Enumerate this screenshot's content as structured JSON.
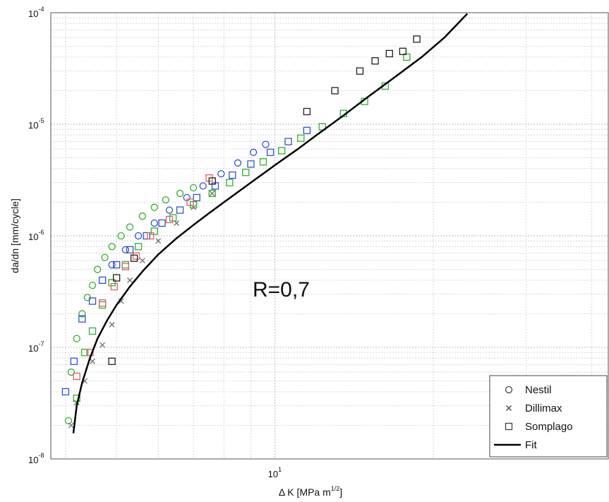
{
  "chart_data": {
    "type": "scatter",
    "title": "",
    "xlabel_prefix": "Δ K [MPa m",
    "xlabel_exp": "1/2",
    "xlabel_suffix": "]",
    "ylabel": "da/dn [mm/cycle]",
    "x_scale": "log",
    "y_scale": "log",
    "xlim": [
      3.75,
      43
    ],
    "ylim": [
      1e-08,
      0.0001
    ],
    "grid": true,
    "x_ticks": [
      {
        "value": 10,
        "base": "10",
        "exp": "1"
      }
    ],
    "y_ticks": [
      {
        "value": 1e-08,
        "base": "10",
        "exp": "-8"
      },
      {
        "value": 1e-07,
        "base": "10",
        "exp": "-7"
      },
      {
        "value": 1e-06,
        "base": "10",
        "exp": "-6"
      },
      {
        "value": 1e-05,
        "base": "10",
        "exp": "-5"
      },
      {
        "value": 0.0001,
        "base": "10",
        "exp": "-4"
      }
    ],
    "annotation": "R=0,7",
    "legend": {
      "position": "bottom-right",
      "entries": [
        {
          "label": "Nestil",
          "marker": "circle"
        },
        {
          "label": "Dillimax",
          "marker": "x"
        },
        {
          "label": "Somplago",
          "marker": "square"
        },
        {
          "label": "Fit",
          "marker": "line"
        }
      ]
    },
    "marker_colors": {
      "green": "#2fb02f",
      "blue": "#3050d0",
      "red": "#e06060",
      "black": "#202020",
      "gray": "#707070"
    },
    "series": [
      {
        "name": "Nestil",
        "marker": "circle",
        "color": "#2fb02f",
        "x": [
          4.05,
          4.1,
          4.2,
          4.3,
          4.4,
          4.5,
          4.6,
          4.75,
          4.9,
          5.1,
          5.3,
          5.6,
          5.9,
          6.2,
          6.6,
          7.0
        ],
        "y": [
          2.2e-08,
          6e-08,
          1.2e-07,
          2e-07,
          2.8e-07,
          3.6e-07,
          5e-07,
          6.4e-07,
          8e-07,
          1e-06,
          1.2e-06,
          1.5e-06,
          1.8e-06,
          2.1e-06,
          2.4e-06,
          2.7e-06
        ]
      },
      {
        "name": "Nestil",
        "marker": "circle",
        "color": "#3050d0",
        "x": [
          4.9,
          5.2,
          5.5,
          5.9,
          6.3,
          6.8,
          7.3,
          7.9,
          8.5,
          9.1,
          9.6
        ],
        "y": [
          5.5e-07,
          7.5e-07,
          1e-06,
          1.3e-06,
          1.7e-06,
          2.2e-06,
          2.8e-06,
          3.6e-06,
          4.5e-06,
          5.6e-06,
          6.6e-06
        ]
      },
      {
        "name": "Dillimax",
        "marker": "x",
        "color": "#707070",
        "x": [
          4.1,
          4.2,
          4.35,
          4.5,
          4.7,
          4.9,
          5.1,
          5.3,
          5.6,
          6.0,
          6.5,
          7.0,
          7.6
        ],
        "y": [
          2e-08,
          3.2e-08,
          5e-08,
          7.5e-08,
          1.05e-07,
          1.6e-07,
          2.6e-07,
          4e-07,
          6e-07,
          9e-07,
          1.3e-06,
          1.8e-06,
          2.4e-06
        ]
      },
      {
        "name": "Somplago",
        "marker": "square",
        "color": "#2fb02f",
        "x": [
          4.2,
          4.35,
          4.5,
          4.7,
          4.9,
          5.2,
          5.5,
          5.9,
          6.4,
          7.0,
          7.6,
          8.2,
          8.8,
          9.5,
          10.3,
          11.2,
          12.3,
          13.5,
          14.8,
          16.2,
          17.8
        ],
        "y": [
          3.5e-08,
          9e-08,
          1.4e-07,
          2.4e-07,
          3.8e-07,
          5.5e-07,
          8e-07,
          1.1e-06,
          1.45e-06,
          1.9e-06,
          2.4e-06,
          3e-06,
          3.7e-06,
          4.6e-06,
          5.8e-06,
          7.5e-06,
          9.5e-06,
          1.25e-05,
          1.6e-05,
          2.2e-05,
          4e-05
        ]
      },
      {
        "name": "Somplago",
        "marker": "square",
        "color": "#3050d0",
        "x": [
          4.0,
          4.15,
          4.3,
          4.5,
          4.7,
          5.0,
          5.3,
          5.7,
          6.1,
          6.6,
          7.1,
          7.7,
          8.3,
          9.0,
          9.8,
          10.6,
          11.5
        ],
        "y": [
          4e-08,
          7.5e-08,
          1.8e-07,
          2.6e-07,
          4e-07,
          5.5e-07,
          7.5e-07,
          1e-06,
          1.3e-06,
          1.7e-06,
          2.2e-06,
          2.8e-06,
          3.5e-06,
          4.4e-06,
          5.6e-06,
          7e-06,
          8.8e-06
        ]
      },
      {
        "name": "Somplago",
        "marker": "square",
        "color": "#e06060",
        "x": [
          4.2,
          4.45,
          4.7,
          4.95,
          5.2,
          5.45,
          5.8,
          6.3,
          6.9,
          7.5
        ],
        "y": [
          5.5e-08,
          9e-08,
          2.5e-07,
          3.5e-07,
          5.3e-07,
          6.6e-07,
          1e-06,
          1.4e-06,
          2e-06,
          3.3e-06
        ]
      },
      {
        "name": "Somplago",
        "marker": "square",
        "color": "#202020",
        "x": [
          4.9,
          5.0,
          5.4,
          7.6,
          11.5,
          13.0,
          14.5,
          15.5,
          16.5,
          17.5,
          18.6
        ],
        "y": [
          7.5e-08,
          4.2e-07,
          6.3e-07,
          3.1e-06,
          1.3e-05,
          2e-05,
          3e-05,
          3.7e-05,
          4.3e-05,
          4.5e-05,
          5.8e-05
        ]
      }
    ],
    "fit": {
      "name": "Fit",
      "x": [
        4.14,
        4.2,
        4.3,
        4.45,
        4.6,
        4.8,
        5.0,
        5.3,
        5.6,
        6.0,
        6.5,
        7.0,
        7.5,
        8.0,
        9.0,
        10.0,
        11.0,
        12.0,
        13.5,
        15.0,
        17.0,
        19.0,
        21.0,
        23.2
      ],
      "y": [
        1.7e-08,
        3e-08,
        4.8e-08,
        8e-08,
        1.2e-07,
        1.75e-07,
        2.4e-07,
        3.5e-07,
        4.8e-07,
        6.8e-07,
        9.5e-07,
        1.25e-06,
        1.6e-06,
        2e-06,
        3e-06,
        4.3e-06,
        5.9e-06,
        8e-06,
        1.2e-05,
        1.75e-05,
        2.7e-05,
        4e-05,
        6e-05,
        9.8e-05
      ]
    }
  }
}
